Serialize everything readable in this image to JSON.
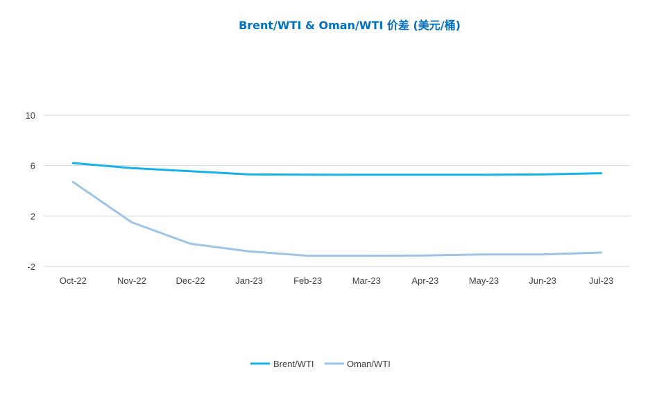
{
  "chart_data": {
    "type": "line",
    "title": "Brent/WTI & Oman/WTI 价差 (美元/桶)",
    "title_color": "#0070C0",
    "categories": [
      "Oct-22",
      "Nov-22",
      "Dec-22",
      "Jan-23",
      "Feb-23",
      "Mar-23",
      "Apr-23",
      "May-23",
      "Jun-23",
      "Jul-23"
    ],
    "series": [
      {
        "name": "Brent/WTI",
        "color": "#17B0E8",
        "values": [
          6.2,
          5.8,
          5.55,
          5.3,
          5.28,
          5.27,
          5.27,
          5.27,
          5.3,
          5.4
        ]
      },
      {
        "name": "Oman/WTI",
        "color": "#9DC3E6",
        "values": [
          4.7,
          1.5,
          -0.2,
          -0.8,
          -1.15,
          -1.15,
          -1.13,
          -1.05,
          -1.05,
          -0.9
        ]
      }
    ],
    "y_ticks": [
      "10",
      "6",
      "2",
      "-2"
    ],
    "ylim": [
      -2,
      10
    ],
    "xlabel": "",
    "ylabel": "",
    "grid": true,
    "legend_position": "bottom"
  }
}
